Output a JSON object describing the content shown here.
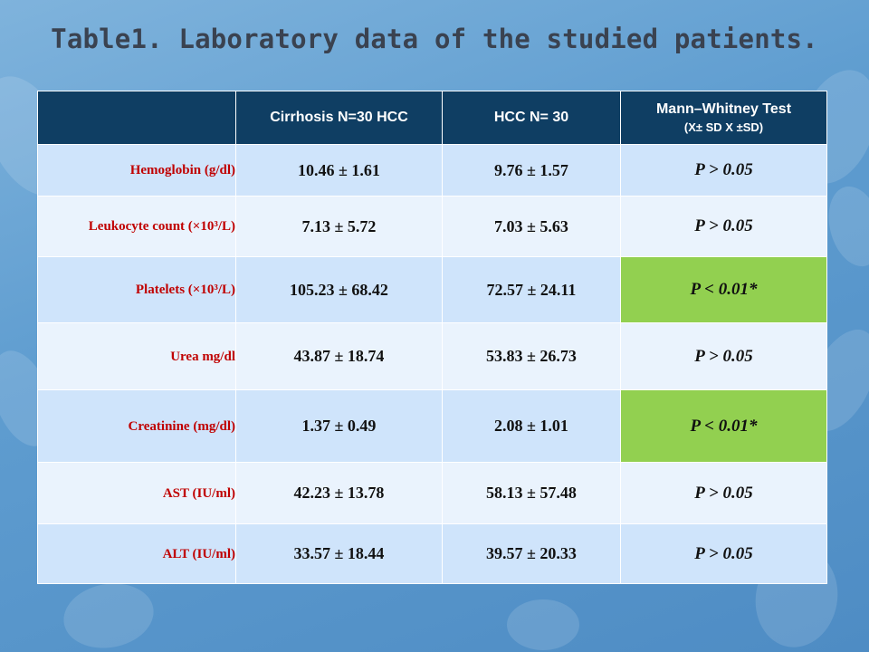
{
  "title": "Table1. Laboratory data of the studied patients.",
  "table": {
    "headers": [
      {
        "main": "",
        "sub": ""
      },
      {
        "main": "Cirrhosis N=30 HCC",
        "sub": ""
      },
      {
        "main": "HCC N= 30",
        "sub": ""
      },
      {
        "main": "Mann–Whitney Test",
        "sub": "(X± SD X ±SD)"
      }
    ],
    "rows": [
      {
        "label": "Hemoglobin (g/dl)",
        "cirrhosis": "10.46 ± 1.61",
        "hcc": "9.76 ± 1.57",
        "p": "P > 0.05",
        "significant": false
      },
      {
        "label": "Leukocyte count (×10³/L)",
        "cirrhosis": "7.13 ± 5.72",
        "hcc": "7.03 ± 5.63",
        "p": "P > 0.05",
        "significant": false
      },
      {
        "label": "Platelets (×10³/L)",
        "cirrhosis": "105.23 ± 68.42",
        "hcc": "72.57 ± 24.11",
        "p": "P < 0.01*",
        "significant": true
      },
      {
        "label": "Urea mg/dl",
        "cirrhosis": "43.87 ± 18.74",
        "hcc": "53.83 ± 26.73",
        "p": "P > 0.05",
        "significant": false
      },
      {
        "label": "Creatinine (mg/dl)",
        "cirrhosis": "1.37 ± 0.49",
        "hcc": "2.08 ± 1.01",
        "p": "P < 0.01*",
        "significant": true
      },
      {
        "label": "AST (IU/ml)",
        "cirrhosis": "42.23 ± 13.78",
        "hcc": "58.13 ± 57.48",
        "p": "P > 0.05",
        "significant": false
      },
      {
        "label": "ALT (IU/ml)",
        "cirrhosis": "33.57 ± 18.44",
        "hcc": "39.57 ± 20.33",
        "p": "P > 0.05",
        "significant": false
      }
    ]
  },
  "colors": {
    "header_bg": "#0f3e63",
    "row_odd": "#cfe4fb",
    "row_even": "#eaf3fd",
    "significant_bg": "#92d050",
    "label_text": "#c00000"
  }
}
